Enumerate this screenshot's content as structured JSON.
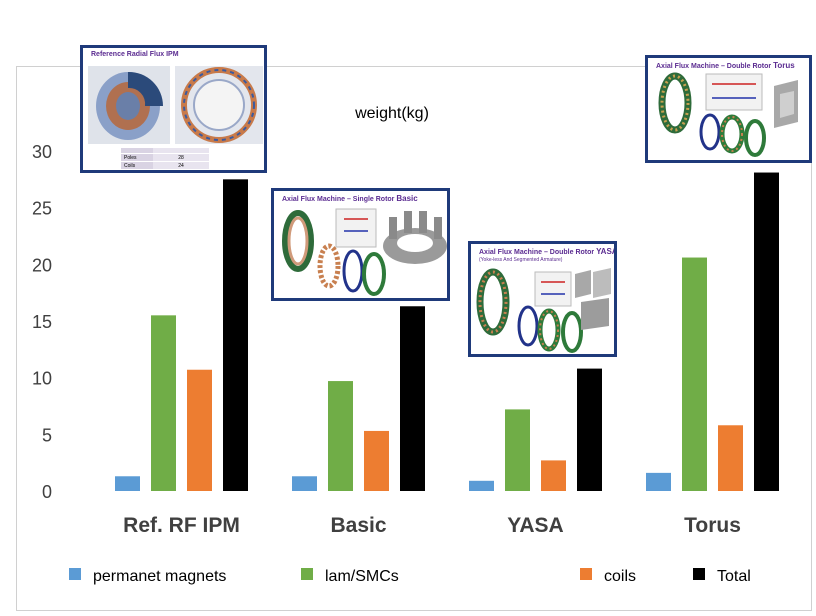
{
  "chart_data": {
    "type": "bar",
    "title": "weight(kg)",
    "categories": [
      "Ref. RF IPM",
      "Basic",
      "YASA",
      "Torus"
    ],
    "series": [
      {
        "name": "permanet magnets",
        "color": "#5b9bd5",
        "values": [
          1.3,
          1.3,
          0.9,
          1.6
        ]
      },
      {
        "name": "lam/SMCs",
        "color": "#70ad47",
        "values": [
          15.5,
          9.7,
          7.2,
          20.6
        ]
      },
      {
        "name": "coils",
        "color": "#ed7d31",
        "values": [
          10.7,
          5.3,
          2.7,
          5.8
        ]
      },
      {
        "name": "Total",
        "color": "#000000",
        "values": [
          27.5,
          16.3,
          10.8,
          28.1
        ]
      }
    ],
    "ylim": [
      0,
      30
    ],
    "yticks": [
      0,
      5,
      10,
      15,
      20,
      25,
      30
    ],
    "xlabel": "",
    "ylabel": "",
    "grid": false,
    "legend": "bottom"
  },
  "insets": {
    "ipm": {
      "title": "Reference Radial Flux IPM",
      "table": [
        [
          "",
          ""
        ],
        [
          "Poles",
          "28"
        ],
        [
          "Coils",
          "24"
        ]
      ]
    },
    "basic": {
      "title_prefix": "Axial Flux Machine – Single Rotor ",
      "title_bold": "Basic"
    },
    "yasa": {
      "title_prefix": "Axial Flux Machine – Double Rotor ",
      "title_bold": "YASA",
      "subtitle": "(Yoke-less And Segmented Armature)"
    },
    "torus": {
      "title_prefix": "Axial Flux Machine – Double Rotor ",
      "title_bold": "Torus"
    }
  }
}
